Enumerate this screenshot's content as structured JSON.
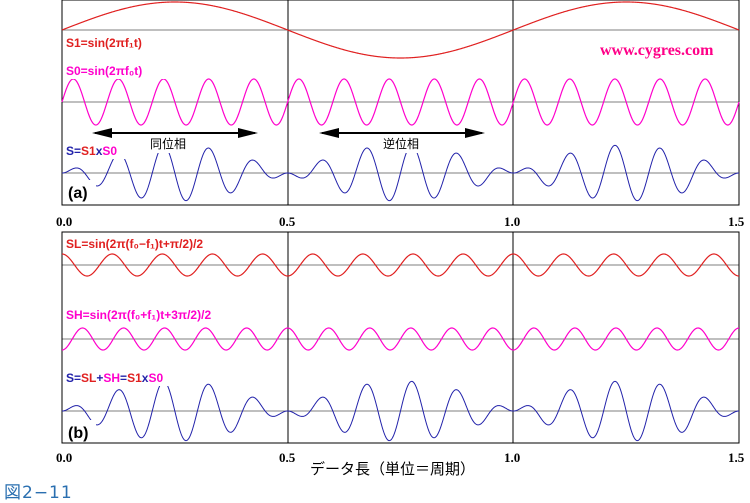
{
  "colors": {
    "red": "#e02020",
    "magenta": "#ff00cc",
    "blue": "#2222aa",
    "black": "#000000",
    "site": "#ff0088",
    "caption": "#2a6fb0"
  },
  "site_label": "www.cygres.com",
  "caption": "図2−11",
  "xlabel": "データ長（単位＝周期）",
  "chart_data": [
    {
      "type": "line",
      "panel_label": "(a)",
      "xlim": [
        0,
        1.5
      ],
      "x_ticks": [
        "0.0",
        "0.5",
        "1.0",
        "1.5"
      ],
      "grid": true,
      "series": [
        {
          "name": "S1=sin(2πf₁t)",
          "color": "#e02020",
          "formula": "sin(2*pi*f1*t)",
          "amplitude": 1,
          "f1_cycles": 1
        },
        {
          "name": "S0=sin(2πf₀t)",
          "color": "#ff00cc",
          "formula": "sin(2*pi*f0*t)",
          "amplitude": 1,
          "f0_cycles": 10
        },
        {
          "name_parts": [
            "S=",
            "S1",
            "x",
            "S0"
          ],
          "name_colors": [
            "#2222aa",
            "#e02020",
            "#2222aa",
            "#ff00cc"
          ],
          "color": "#2222aa",
          "formula": "S1*S0"
        }
      ],
      "annotations": [
        "同位相",
        "逆位相"
      ]
    },
    {
      "type": "line",
      "panel_label": "(b)",
      "xlim": [
        0,
        1.5
      ],
      "x_ticks": [
        "0.0",
        "0.5",
        "1.0",
        "1.5"
      ],
      "grid": true,
      "series": [
        {
          "name": "SL=sin(2π(f₀−f₁)t+π/2)/2",
          "color": "#e02020",
          "formula": "sin(2*pi*(f0-f1)*t+pi/2)/2"
        },
        {
          "name": "SH=sin(2π(f₀+f₁)t+3π/2)/2",
          "color": "#ff00cc",
          "formula": "sin(2*pi*(f0+f1)*t+3*pi/2)/2"
        },
        {
          "name_parts": [
            "S=",
            "SL",
            "+",
            "SH",
            "=",
            "S1",
            "x",
            "S0"
          ],
          "name_colors": [
            "#2222aa",
            "#e02020",
            "#2222aa",
            "#ff00cc",
            "#2222aa",
            "#e02020",
            "#2222aa",
            "#ff00cc"
          ],
          "color": "#2222aa",
          "formula": "SL+SH"
        }
      ]
    }
  ]
}
